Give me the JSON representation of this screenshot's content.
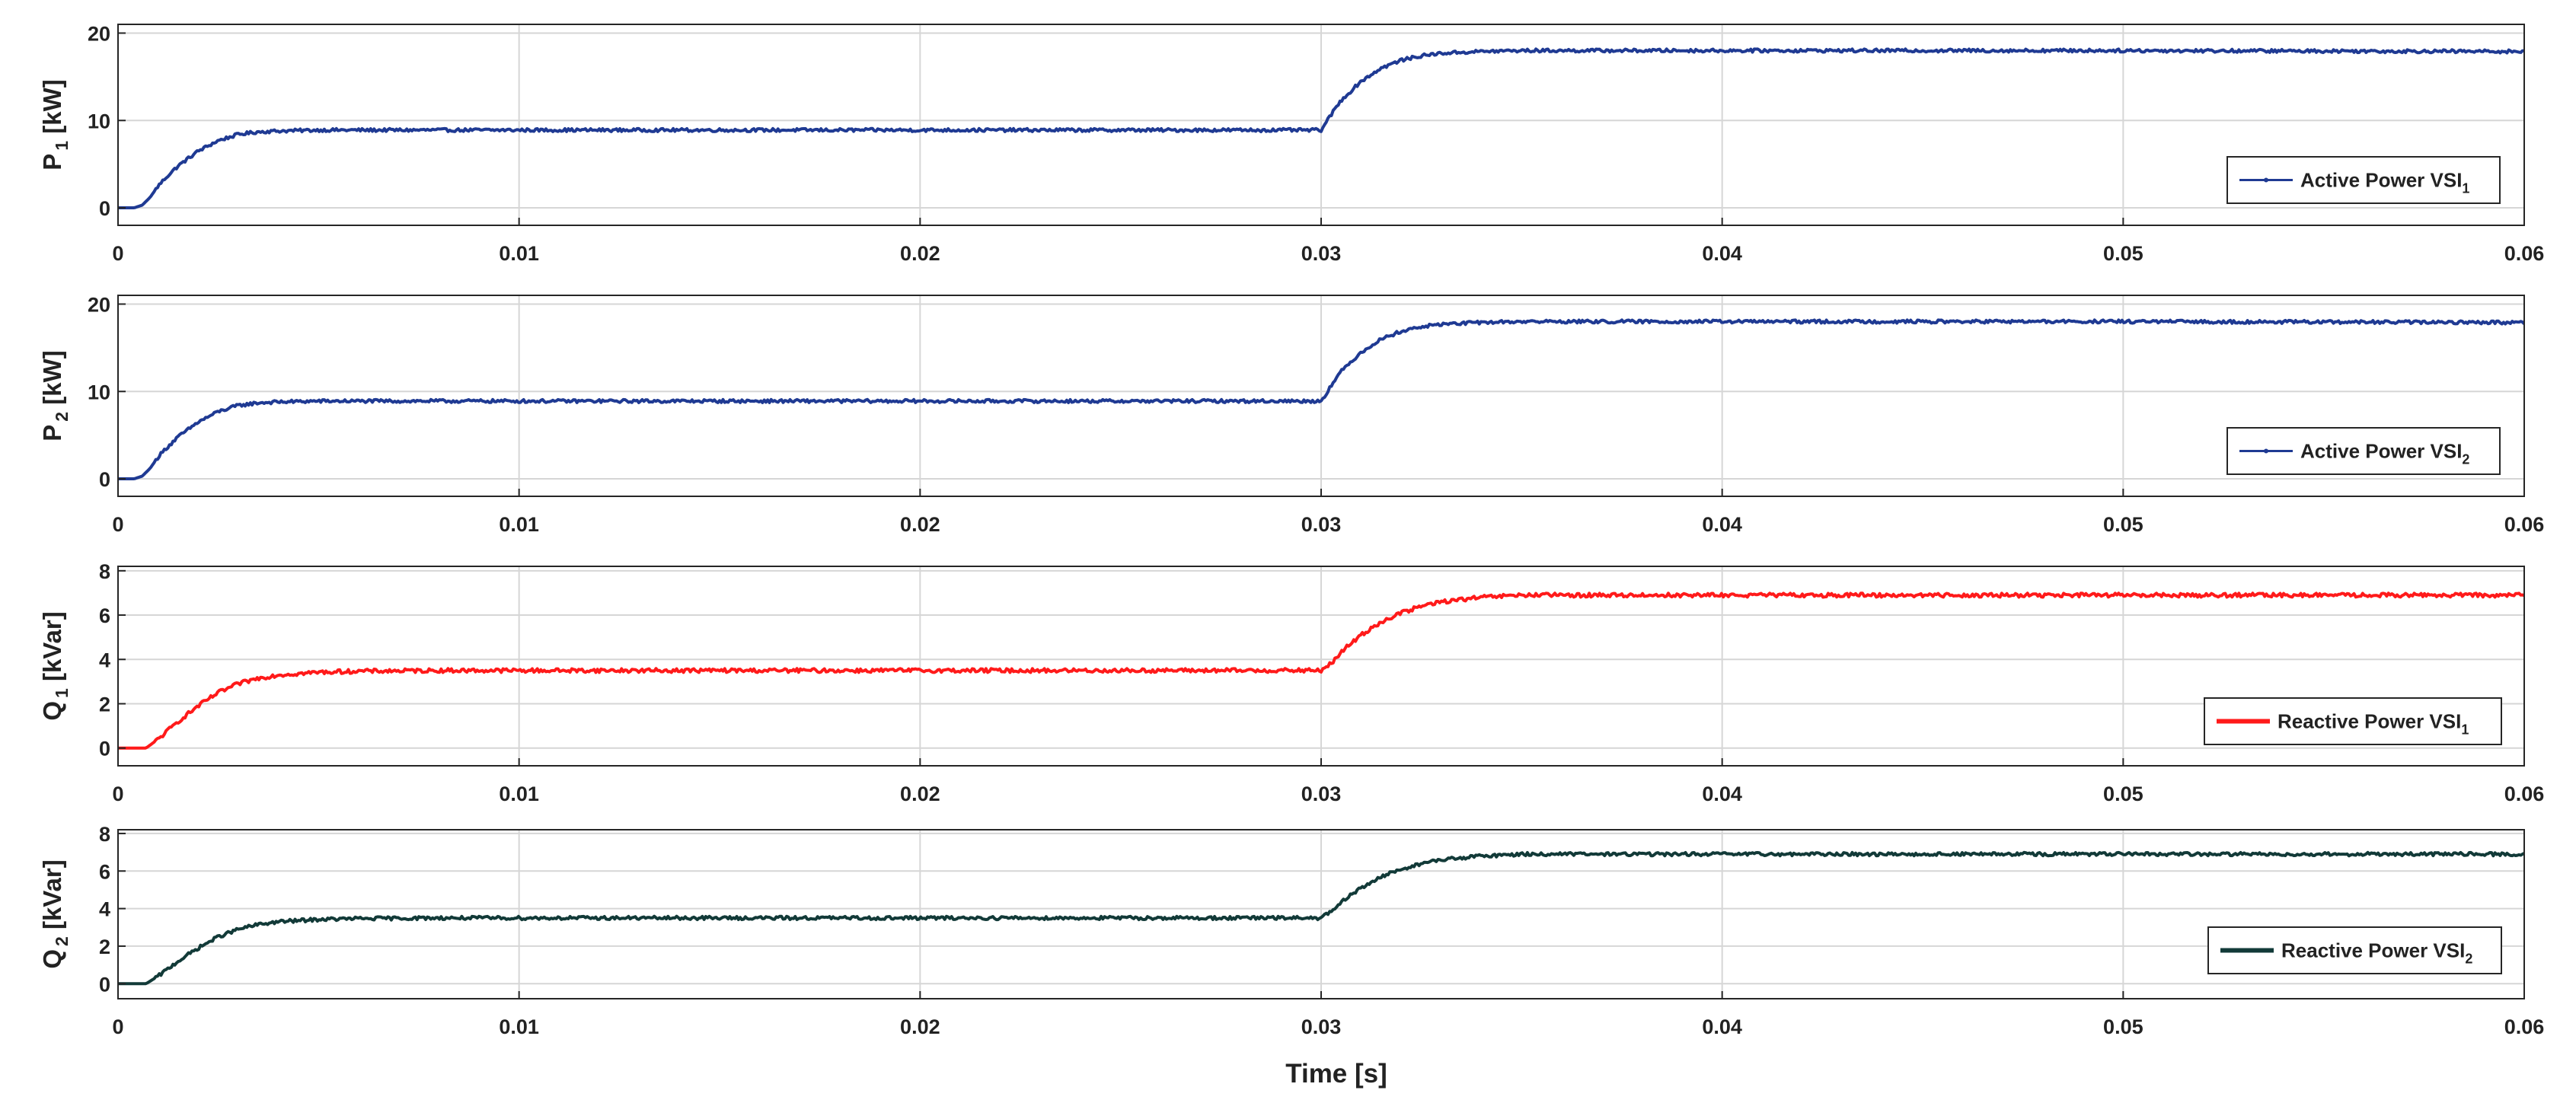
{
  "chart_data": [
    {
      "type": "line",
      "ylabel": {
        "main": "P",
        "sub": "1",
        "unit": " [kW]"
      },
      "xlabel": "",
      "xlim": [
        0,
        0.06
      ],
      "ylim": [
        -2,
        21
      ],
      "xticks": [
        0,
        0.01,
        0.02,
        0.03,
        0.04,
        0.05,
        0.06
      ],
      "xtick_labels": [
        "0",
        "0.01",
        "0.02",
        "0.03",
        "0.04",
        "0.05",
        "0.06"
      ],
      "yticks": [
        0,
        10,
        20
      ],
      "ytick_labels": [
        "0",
        "10",
        "20"
      ],
      "grid": true,
      "legend_position": "bottom-right",
      "series": [
        {
          "name": "Active Power VSI",
          "name_sub": "1",
          "color": "#1f3a93",
          "marker": "dot",
          "x": [
            0,
            0.0004,
            0.0006,
            0.0008,
            0.001,
            0.0012,
            0.0015,
            0.002,
            0.0025,
            0.003,
            0.0035,
            0.004,
            0.005,
            0.01,
            0.02,
            0.03,
            0.0301,
            0.0303,
            0.0305,
            0.031,
            0.0315,
            0.032,
            0.0325,
            0.033,
            0.034,
            0.035,
            0.04,
            0.05,
            0.06
          ],
          "y": [
            0,
            0,
            0.3,
            1.2,
            2.5,
            3.5,
            4.8,
            6.5,
            7.7,
            8.4,
            8.7,
            8.8,
            8.9,
            8.9,
            8.9,
            8.9,
            9.6,
            11.0,
            12.3,
            14.5,
            16.0,
            16.9,
            17.4,
            17.7,
            17.9,
            18.0,
            18.0,
            18.0,
            17.9
          ],
          "noise": 0.18
        }
      ]
    },
    {
      "type": "line",
      "ylabel": {
        "main": "P",
        "sub": "2",
        "unit": " [kW]"
      },
      "xlabel": "",
      "xlim": [
        0,
        0.06
      ],
      "ylim": [
        -2,
        21
      ],
      "xticks": [
        0,
        0.01,
        0.02,
        0.03,
        0.04,
        0.05,
        0.06
      ],
      "xtick_labels": [
        "0",
        "0.01",
        "0.02",
        "0.03",
        "0.04",
        "0.05",
        "0.06"
      ],
      "yticks": [
        0,
        10,
        20
      ],
      "ytick_labels": [
        "0",
        "10",
        "20"
      ],
      "grid": true,
      "legend_position": "bottom-right",
      "series": [
        {
          "name": "Active Power VSI",
          "name_sub": "2",
          "color": "#1f3a93",
          "marker": "dot",
          "x": [
            0,
            0.0004,
            0.0006,
            0.0008,
            0.001,
            0.0012,
            0.0015,
            0.002,
            0.0025,
            0.003,
            0.0035,
            0.004,
            0.005,
            0.01,
            0.02,
            0.03,
            0.0301,
            0.0303,
            0.0305,
            0.031,
            0.0315,
            0.032,
            0.0325,
            0.033,
            0.034,
            0.035,
            0.04,
            0.05,
            0.06
          ],
          "y": [
            0,
            0,
            0.3,
            1.2,
            2.5,
            3.5,
            4.8,
            6.5,
            7.7,
            8.4,
            8.7,
            8.8,
            8.9,
            8.9,
            8.9,
            8.9,
            9.6,
            11.0,
            12.3,
            14.5,
            16.0,
            16.9,
            17.4,
            17.7,
            17.9,
            18.0,
            18.0,
            18.0,
            17.9
          ],
          "noise": 0.18
        }
      ]
    },
    {
      "type": "line",
      "ylabel": {
        "main": "Q",
        "sub": "1",
        "unit": " [kVar]"
      },
      "xlabel": "",
      "xlim": [
        0,
        0.06
      ],
      "ylim": [
        -0.8,
        8.2
      ],
      "xticks": [
        0,
        0.01,
        0.02,
        0.03,
        0.04,
        0.05,
        0.06
      ],
      "xtick_labels": [
        "0",
        "0.01",
        "0.02",
        "0.03",
        "0.04",
        "0.05",
        "0.06"
      ],
      "yticks": [
        0,
        2,
        4,
        6,
        8
      ],
      "ytick_labels": [
        "0",
        "2",
        "4",
        "6",
        "8"
      ],
      "grid": true,
      "legend_position": "bottom-right",
      "series": [
        {
          "name": "Reactive Power VSI",
          "name_sub": "1",
          "color": "#ff1a1a",
          "marker": "none",
          "x": [
            0,
            0.0007,
            0.001,
            0.0015,
            0.002,
            0.0025,
            0.003,
            0.0035,
            0.004,
            0.005,
            0.006,
            0.008,
            0.01,
            0.02,
            0.03,
            0.0303,
            0.0306,
            0.031,
            0.0315,
            0.032,
            0.0325,
            0.033,
            0.034,
            0.035,
            0.036,
            0.04,
            0.05,
            0.06
          ],
          "y": [
            0,
            0,
            0.4,
            1.2,
            1.9,
            2.5,
            2.9,
            3.15,
            3.3,
            3.42,
            3.47,
            3.5,
            3.5,
            3.5,
            3.5,
            3.9,
            4.5,
            5.1,
            5.7,
            6.1,
            6.4,
            6.6,
            6.8,
            6.9,
            6.9,
            6.9,
            6.9,
            6.9
          ],
          "noise": 0.09
        }
      ]
    },
    {
      "type": "line",
      "ylabel": {
        "main": "Q",
        "sub": "2",
        "unit": " [kVar]"
      },
      "xlabel": "Time [s]",
      "xlim": [
        0,
        0.06
      ],
      "ylim": [
        -0.8,
        8.2
      ],
      "xticks": [
        0,
        0.01,
        0.02,
        0.03,
        0.04,
        0.05,
        0.06
      ],
      "xtick_labels": [
        "0",
        "0.01",
        "0.02",
        "0.03",
        "0.04",
        "0.05",
        "0.06"
      ],
      "yticks": [
        0,
        2,
        4,
        6,
        8
      ],
      "ytick_labels": [
        "0",
        "2",
        "4",
        "6",
        "8"
      ],
      "grid": true,
      "legend_position": "bottom-right",
      "series": [
        {
          "name": "Reactive Power VSI",
          "name_sub": "2",
          "color": "#123a38",
          "marker": "none",
          "x": [
            0,
            0.0007,
            0.001,
            0.0015,
            0.002,
            0.0025,
            0.003,
            0.0035,
            0.004,
            0.005,
            0.006,
            0.008,
            0.01,
            0.02,
            0.03,
            0.0303,
            0.0306,
            0.031,
            0.0315,
            0.032,
            0.0325,
            0.033,
            0.034,
            0.035,
            0.036,
            0.04,
            0.05,
            0.06
          ],
          "y": [
            0,
            0,
            0.4,
            1.2,
            1.9,
            2.5,
            2.9,
            3.15,
            3.3,
            3.42,
            3.47,
            3.5,
            3.5,
            3.5,
            3.5,
            3.9,
            4.5,
            5.1,
            5.7,
            6.1,
            6.4,
            6.6,
            6.8,
            6.9,
            6.9,
            6.9,
            6.9,
            6.9
          ],
          "noise": 0.09
        }
      ]
    }
  ]
}
